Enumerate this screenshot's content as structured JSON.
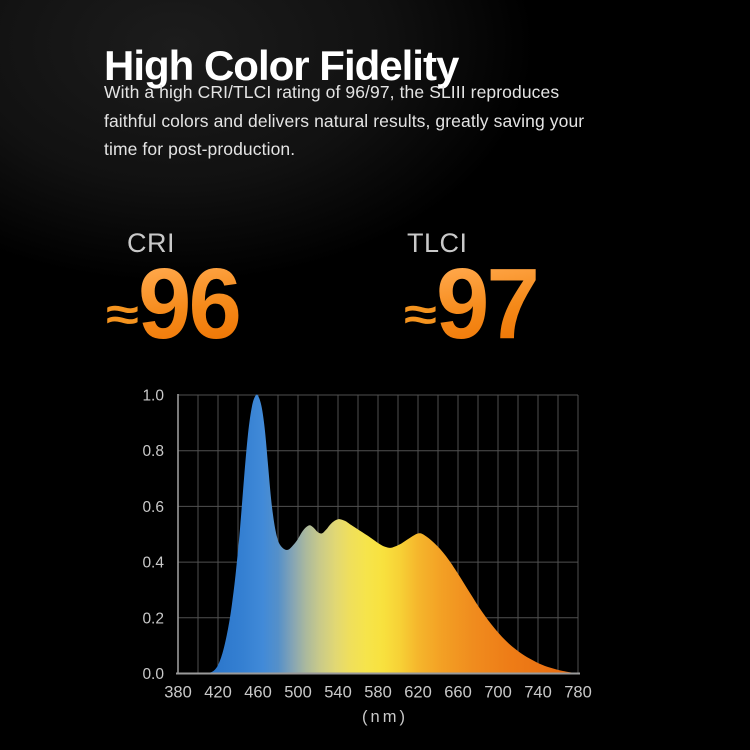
{
  "header": {
    "title": "High Color Fidelity",
    "description_lines": [
      "With a high CRI/TLCI rating of 96/97, the SLIII reproduces",
      "faithful colors and delivers natural results, greatly saving your",
      "time for post-production."
    ]
  },
  "metrics": [
    {
      "label": "CRI",
      "approx_symbol": "≈",
      "value": "96"
    },
    {
      "label": "TLCI",
      "approx_symbol": "≈",
      "value": "97"
    }
  ],
  "colors": {
    "accent_orange": "#F5941F",
    "number_gradient_top": "#FFA648",
    "number_gradient_bottom": "#EF7503",
    "title_white": "#ffffff",
    "body_gray": "#e4e4e4",
    "label_gray": "#c9c9c9",
    "tick_gray": "#c9c9c9",
    "grid_gray": "#515151",
    "axis_gray": "#9a9a9a"
  },
  "chart_data": {
    "type": "area",
    "xlabel": "(nm)",
    "xlim": [
      380,
      780
    ],
    "ylim": [
      0,
      1
    ],
    "x_tick_values": [
      380,
      420,
      460,
      500,
      540,
      580,
      620,
      660,
      700,
      740,
      780
    ],
    "y_tick_labels": [
      "1.0",
      "0.8",
      "0.6",
      "0.4",
      "0.2",
      "0.0"
    ],
    "y_tick_values": [
      1.0,
      0.8,
      0.6,
      0.4,
      0.2,
      0.0
    ],
    "grid_step_nm": 20,
    "grid_step_y": 0.2,
    "legend": false,
    "series": [
      {
        "name": "spectrum",
        "points": [
          [
            380,
            0
          ],
          [
            404,
            0
          ],
          [
            410,
            0.002
          ],
          [
            415,
            0.008
          ],
          [
            420,
            0.03
          ],
          [
            425,
            0.08
          ],
          [
            430,
            0.16
          ],
          [
            434,
            0.25
          ],
          [
            438,
            0.37
          ],
          [
            442,
            0.52
          ],
          [
            446,
            0.7
          ],
          [
            450,
            0.86
          ],
          [
            454,
            0.96
          ],
          [
            458,
            1.0
          ],
          [
            461,
            0.99
          ],
          [
            464,
            0.95
          ],
          [
            467,
            0.87
          ],
          [
            470,
            0.75
          ],
          [
            473,
            0.63
          ],
          [
            476,
            0.545
          ],
          [
            479,
            0.49
          ],
          [
            482,
            0.462
          ],
          [
            486,
            0.447
          ],
          [
            490,
            0.444
          ],
          [
            494,
            0.456
          ],
          [
            499,
            0.478
          ],
          [
            504,
            0.508
          ],
          [
            508,
            0.525
          ],
          [
            512,
            0.532
          ],
          [
            516,
            0.522
          ],
          [
            520,
            0.507
          ],
          [
            524,
            0.503
          ],
          [
            528,
            0.516
          ],
          [
            533,
            0.538
          ],
          [
            538,
            0.551
          ],
          [
            542,
            0.554
          ],
          [
            547,
            0.548
          ],
          [
            552,
            0.536
          ],
          [
            558,
            0.522
          ],
          [
            564,
            0.508
          ],
          [
            570,
            0.494
          ],
          [
            576,
            0.479
          ],
          [
            582,
            0.464
          ],
          [
            587,
            0.455
          ],
          [
            592,
            0.451
          ],
          [
            597,
            0.456
          ],
          [
            603,
            0.466
          ],
          [
            609,
            0.48
          ],
          [
            615,
            0.494
          ],
          [
            619,
            0.502
          ],
          [
            623,
            0.503
          ],
          [
            628,
            0.493
          ],
          [
            633,
            0.479
          ],
          [
            639,
            0.459
          ],
          [
            645,
            0.435
          ],
          [
            651,
            0.407
          ],
          [
            657,
            0.375
          ],
          [
            663,
            0.341
          ],
          [
            669,
            0.306
          ],
          [
            675,
            0.272
          ],
          [
            681,
            0.238
          ],
          [
            687,
            0.207
          ],
          [
            693,
            0.178
          ],
          [
            699,
            0.152
          ],
          [
            705,
            0.128
          ],
          [
            711,
            0.107
          ],
          [
            717,
            0.089
          ],
          [
            723,
            0.073
          ],
          [
            729,
            0.059
          ],
          [
            735,
            0.047
          ],
          [
            741,
            0.036
          ],
          [
            747,
            0.027
          ],
          [
            753,
            0.02
          ],
          [
            759,
            0.014
          ],
          [
            765,
            0.009
          ],
          [
            771,
            0.005
          ],
          [
            776,
            0.002
          ],
          [
            780,
            0
          ]
        ]
      }
    ],
    "gradient_stops": [
      {
        "nm": 415,
        "color": "#2B76CB"
      },
      {
        "nm": 445,
        "color": "#3580D2"
      },
      {
        "nm": 465,
        "color": "#418AD8"
      },
      {
        "nm": 480,
        "color": "#5590C9"
      },
      {
        "nm": 495,
        "color": "#86A5B4"
      },
      {
        "nm": 508,
        "color": "#ABB99D"
      },
      {
        "nm": 522,
        "color": "#C9CA89"
      },
      {
        "nm": 538,
        "color": "#E2D873"
      },
      {
        "nm": 552,
        "color": "#EFDF5C"
      },
      {
        "nm": 568,
        "color": "#F6E44B"
      },
      {
        "nm": 585,
        "color": "#F8E13E"
      },
      {
        "nm": 602,
        "color": "#F7D136"
      },
      {
        "nm": 620,
        "color": "#F5B62C"
      },
      {
        "nm": 645,
        "color": "#F39F24"
      },
      {
        "nm": 675,
        "color": "#F08C1E"
      },
      {
        "nm": 710,
        "color": "#EE7D17"
      },
      {
        "nm": 780,
        "color": "#E86A10"
      }
    ]
  }
}
